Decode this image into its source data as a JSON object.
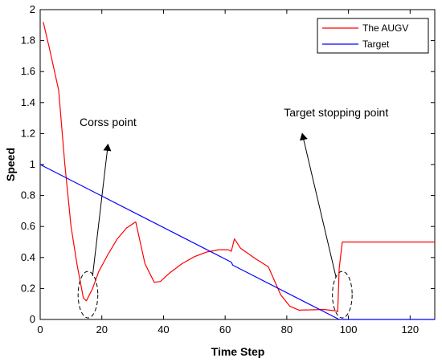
{
  "chart_data": {
    "type": "line",
    "xlabel": "Time Step",
    "ylabel": "Speed",
    "xlim": [
      0,
      128
    ],
    "ylim": [
      0,
      2
    ],
    "xticks": [
      "0",
      "20",
      "40",
      "60",
      "80",
      "100",
      "120"
    ],
    "yticks": [
      "0",
      "0.2",
      "0.4",
      "0.6",
      "0.8",
      "1",
      "1.2",
      "1.4",
      "1.6",
      "1.8",
      "2"
    ],
    "grid": false,
    "legend_position": "top-right",
    "series": [
      {
        "name": "The AUGV",
        "color": "#ff0000",
        "x": [
          1,
          3,
          6,
          8,
          10,
          12,
          14,
          15,
          17,
          19,
          22,
          25,
          28,
          31,
          34,
          37,
          39,
          42,
          46,
          50,
          54,
          58,
          61,
          62,
          63,
          65,
          70,
          74,
          78,
          81,
          84,
          88,
          92,
          96,
          96.5,
          97,
          98,
          128
        ],
        "y": [
          1.92,
          1.75,
          1.48,
          1.0,
          0.6,
          0.35,
          0.14,
          0.12,
          0.2,
          0.31,
          0.42,
          0.52,
          0.59,
          0.63,
          0.36,
          0.24,
          0.245,
          0.3,
          0.36,
          0.405,
          0.435,
          0.45,
          0.45,
          0.44,
          0.52,
          0.46,
          0.39,
          0.34,
          0.16,
          0.085,
          0.06,
          0.062,
          0.065,
          0.055,
          0.05,
          0.33,
          0.5,
          0.5
        ]
      },
      {
        "name": "Target",
        "color": "#0000ff",
        "x": [
          0,
          62,
          62.5,
          97,
          128
        ],
        "y": [
          1.0,
          0.37,
          0.35,
          0.0,
          0.0
        ]
      }
    ],
    "annotations": [
      {
        "text": "Corss point",
        "x": 22,
        "y": 1.25,
        "arrow_from": [
          17,
          0.28
        ],
        "arrow_to": [
          22,
          1.13
        ],
        "ellipse": [
          15.5,
          0.16,
          3.2,
          0.15
        ]
      },
      {
        "text": "Target stopping point",
        "x": 96,
        "y": 1.31,
        "arrow_from": [
          96,
          0.27
        ],
        "arrow_to": [
          85,
          1.2
        ],
        "ellipse": [
          98,
          0.16,
          3.2,
          0.15
        ]
      }
    ]
  }
}
